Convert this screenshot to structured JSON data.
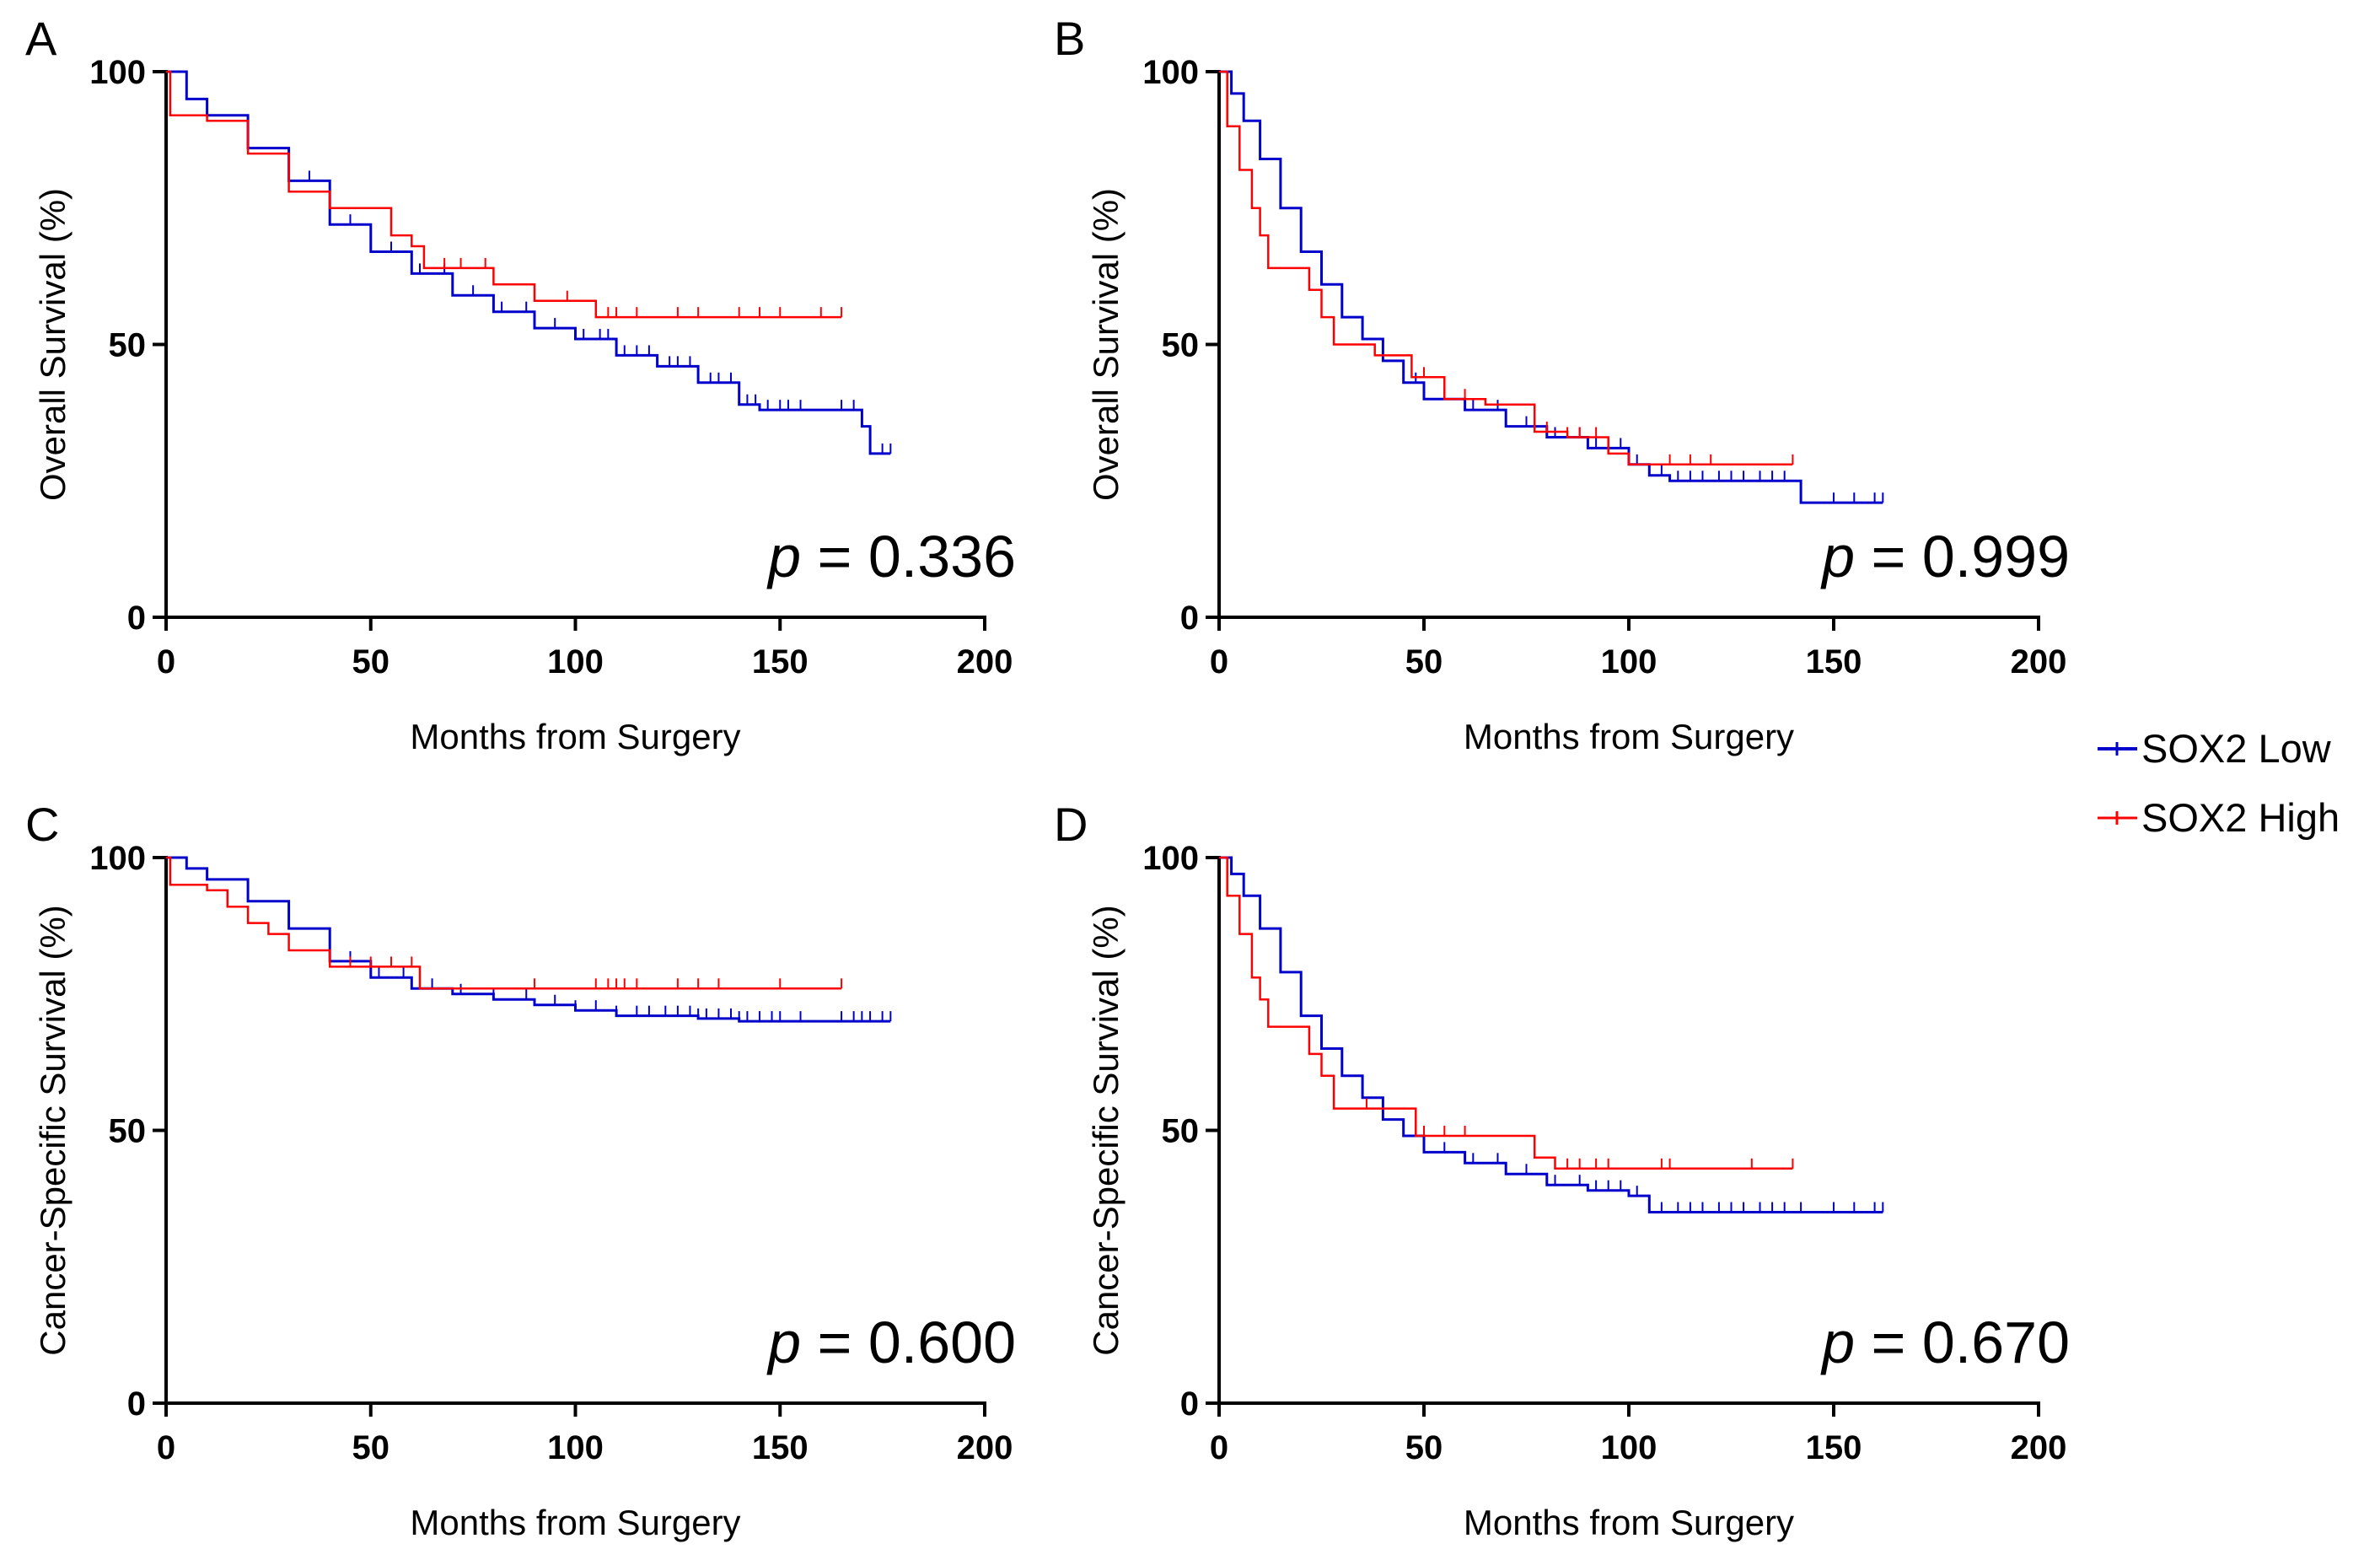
{
  "legend": {
    "items": [
      {
        "label": "SOX2 Low",
        "color": "#0000CC"
      },
      {
        "label": "SOX2 High",
        "color": "#FF0000"
      }
    ]
  },
  "chart_data": [
    {
      "panel": "A",
      "type": "line",
      "ylabel": "Overall Survival (%)",
      "xlabel": "Months from Surgery",
      "xlim": [
        0,
        200
      ],
      "ylim": [
        0,
        100
      ],
      "xticks": [
        "0",
        "50",
        "100",
        "150",
        "200"
      ],
      "yticks": [
        "0",
        "50",
        "100"
      ],
      "p_prefix": "p",
      "p_value": "= 0.336",
      "series": [
        {
          "name": "SOX2 Low",
          "color": "#0000CC",
          "points": [
            [
              0,
              100
            ],
            [
              5,
              95
            ],
            [
              10,
              92
            ],
            [
              20,
              86
            ],
            [
              30,
              80
            ],
            [
              40,
              72
            ],
            [
              50,
              67
            ],
            [
              60,
              63
            ],
            [
              70,
              59
            ],
            [
              80,
              56
            ],
            [
              90,
              53
            ],
            [
              100,
              51
            ],
            [
              110,
              48
            ],
            [
              120,
              46
            ],
            [
              130,
              43
            ],
            [
              140,
              39
            ],
            [
              145,
              38
            ],
            [
              165,
              38
            ],
            [
              170,
              35
            ],
            [
              172,
              30
            ],
            [
              177,
              30
            ]
          ],
          "censor": [
            35,
            45,
            55,
            62,
            68,
            75,
            82,
            88,
            95,
            102,
            106,
            108,
            112,
            115,
            118,
            120,
            123,
            125,
            128,
            130,
            133,
            135,
            138,
            142,
            144,
            147,
            150,
            152,
            155,
            165,
            168,
            175,
            177
          ]
        },
        {
          "name": "SOX2 High",
          "color": "#FF0000",
          "points": [
            [
              0,
              100
            ],
            [
              1,
              92
            ],
            [
              5,
              92
            ],
            [
              10,
              91
            ],
            [
              20,
              85
            ],
            [
              30,
              78
            ],
            [
              38,
              78
            ],
            [
              40,
              75
            ],
            [
              52,
              75
            ],
            [
              55,
              70
            ],
            [
              60,
              68
            ],
            [
              63,
              64
            ],
            [
              75,
              64
            ],
            [
              80,
              61
            ],
            [
              90,
              58
            ],
            [
              105,
              55
            ],
            [
              110,
              55
            ],
            [
              165,
              55
            ]
          ],
          "censor": [
            68,
            72,
            78,
            98,
            108,
            110,
            115,
            125,
            130,
            140,
            145,
            150,
            160,
            165
          ]
        }
      ]
    },
    {
      "panel": "B",
      "type": "line",
      "ylabel": "Overall Survival (%)",
      "xlabel": "Months from Surgery",
      "xlim": [
        0,
        200
      ],
      "ylim": [
        0,
        100
      ],
      "xticks": [
        "0",
        "50",
        "100",
        "150",
        "200"
      ],
      "yticks": [
        "0",
        "50",
        "100"
      ],
      "p_prefix": "p",
      "p_value": "= 0.999",
      "series": [
        {
          "name": "SOX2 Low",
          "color": "#0000CC",
          "points": [
            [
              0,
              100
            ],
            [
              3,
              96
            ],
            [
              6,
              91
            ],
            [
              10,
              84
            ],
            [
              15,
              75
            ],
            [
              20,
              67
            ],
            [
              25,
              61
            ],
            [
              30,
              55
            ],
            [
              35,
              51
            ],
            [
              40,
              47
            ],
            [
              45,
              43
            ],
            [
              50,
              40
            ],
            [
              60,
              38
            ],
            [
              70,
              35
            ],
            [
              80,
              33
            ],
            [
              90,
              31
            ],
            [
              100,
              28
            ],
            [
              105,
              26
            ],
            [
              110,
              25
            ],
            [
              130,
              25
            ],
            [
              140,
              25
            ],
            [
              142,
              21
            ],
            [
              162,
              21
            ]
          ],
          "censor": [
            40,
            48,
            55,
            62,
            68,
            75,
            82,
            88,
            92,
            95,
            98,
            102,
            108,
            112,
            115,
            118,
            122,
            125,
            128,
            132,
            135,
            138,
            142,
            150,
            155,
            160,
            162
          ]
        },
        {
          "name": "SOX2 High",
          "color": "#FF0000",
          "points": [
            [
              0,
              100
            ],
            [
              2,
              90
            ],
            [
              5,
              82
            ],
            [
              8,
              75
            ],
            [
              10,
              70
            ],
            [
              12,
              64
            ],
            [
              20,
              64
            ],
            [
              22,
              60
            ],
            [
              25,
              55
            ],
            [
              28,
              50
            ],
            [
              35,
              50
            ],
            [
              38,
              48
            ],
            [
              45,
              48
            ],
            [
              47,
              44
            ],
            [
              55,
              40
            ],
            [
              65,
              39
            ],
            [
              75,
              39
            ],
            [
              77,
              34
            ],
            [
              85,
              33
            ],
            [
              95,
              30
            ],
            [
              100,
              28
            ],
            [
              140,
              28
            ]
          ],
          "censor": [
            50,
            60,
            80,
            85,
            88,
            92,
            110,
            115,
            120,
            140
          ]
        }
      ]
    },
    {
      "panel": "C",
      "type": "line",
      "ylabel": "Cancer-Specific Survival (%)",
      "xlabel": "Months from Surgery",
      "xlim": [
        0,
        200
      ],
      "ylim": [
        0,
        100
      ],
      "xticks": [
        "0",
        "50",
        "100",
        "150",
        "200"
      ],
      "yticks": [
        "0",
        "50",
        "100"
      ],
      "p_prefix": "p",
      "p_value": "= 0.600",
      "series": [
        {
          "name": "SOX2 Low",
          "color": "#0000CC",
          "points": [
            [
              0,
              100
            ],
            [
              5,
              98
            ],
            [
              10,
              96
            ],
            [
              20,
              92
            ],
            [
              30,
              87
            ],
            [
              40,
              81
            ],
            [
              50,
              78
            ],
            [
              60,
              76
            ],
            [
              70,
              75
            ],
            [
              80,
              74
            ],
            [
              90,
              73
            ],
            [
              100,
              72
            ],
            [
              110,
              71
            ],
            [
              120,
              71
            ],
            [
              130,
              70.5
            ],
            [
              140,
              70
            ],
            [
              177,
              70
            ]
          ],
          "censor": [
            45,
            52,
            58,
            65,
            72,
            80,
            88,
            95,
            100,
            105,
            110,
            115,
            118,
            122,
            125,
            128,
            130,
            132,
            135,
            138,
            140,
            142,
            145,
            148,
            150,
            155,
            165,
            168,
            170,
            172,
            175,
            177
          ]
        },
        {
          "name": "SOX2 High",
          "color": "#FF0000",
          "points": [
            [
              0,
              100
            ],
            [
              1,
              95
            ],
            [
              5,
              95
            ],
            [
              10,
              94
            ],
            [
              15,
              91
            ],
            [
              20,
              88
            ],
            [
              25,
              86
            ],
            [
              30,
              83
            ],
            [
              35,
              83
            ],
            [
              40,
              80
            ],
            [
              55,
              80
            ],
            [
              60,
              80
            ],
            [
              62,
              76
            ],
            [
              165,
              76
            ]
          ],
          "censor": [
            45,
            50,
            55,
            60,
            90,
            105,
            108,
            110,
            112,
            115,
            125,
            130,
            135,
            150,
            165
          ]
        }
      ]
    },
    {
      "panel": "D",
      "type": "line",
      "ylabel": "Cancer-Specific Survival (%)",
      "xlabel": "Months from Surgery",
      "xlim": [
        0,
        200
      ],
      "ylim": [
        0,
        100
      ],
      "xticks": [
        "0",
        "50",
        "100",
        "150",
        "200"
      ],
      "yticks": [
        "0",
        "50",
        "100"
      ],
      "p_prefix": "p",
      "p_value": "= 0.670",
      "series": [
        {
          "name": "SOX2 Low",
          "color": "#0000CC",
          "points": [
            [
              0,
              100
            ],
            [
              3,
              97
            ],
            [
              6,
              93
            ],
            [
              10,
              87
            ],
            [
              15,
              79
            ],
            [
              20,
              71
            ],
            [
              25,
              65
            ],
            [
              30,
              60
            ],
            [
              35,
              56
            ],
            [
              40,
              52
            ],
            [
              45,
              49
            ],
            [
              50,
              46
            ],
            [
              60,
              44
            ],
            [
              70,
              42
            ],
            [
              80,
              40
            ],
            [
              90,
              39
            ],
            [
              100,
              38
            ],
            [
              105,
              35
            ],
            [
              162,
              35
            ]
          ],
          "censor": [
            40,
            48,
            55,
            62,
            68,
            75,
            82,
            88,
            92,
            95,
            98,
            102,
            108,
            112,
            115,
            118,
            122,
            125,
            128,
            132,
            135,
            138,
            142,
            150,
            155,
            160,
            162
          ]
        },
        {
          "name": "SOX2 High",
          "color": "#FF0000",
          "points": [
            [
              0,
              100
            ],
            [
              2,
              93
            ],
            [
              5,
              86
            ],
            [
              8,
              78
            ],
            [
              10,
              74
            ],
            [
              12,
              69
            ],
            [
              20,
              69
            ],
            [
              22,
              64
            ],
            [
              25,
              60
            ],
            [
              28,
              54
            ],
            [
              47,
              54
            ],
            [
              48,
              49
            ],
            [
              76,
              49
            ],
            [
              77,
              45
            ],
            [
              82,
              43
            ],
            [
              140,
              43
            ]
          ],
          "censor": [
            36,
            50,
            55,
            60,
            85,
            88,
            92,
            95,
            108,
            110,
            130,
            140
          ]
        }
      ]
    }
  ]
}
